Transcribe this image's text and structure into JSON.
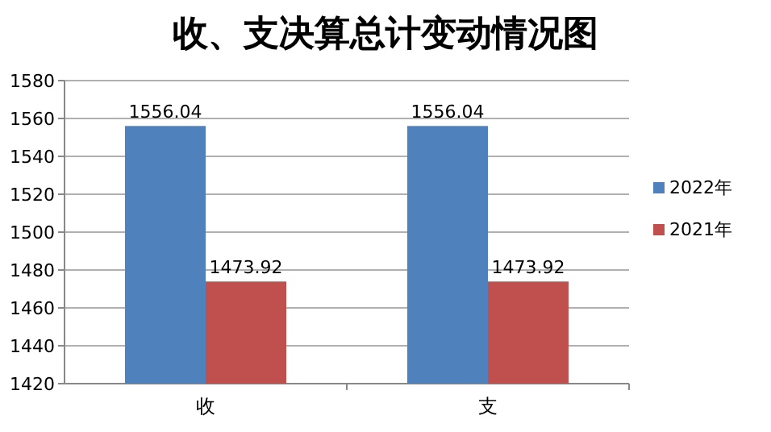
{
  "chart_data": {
    "type": "bar",
    "title": "收、支决算总计变动情况图",
    "categories": [
      "收",
      "支"
    ],
    "series": [
      {
        "name": "2022年",
        "color": "#4f81bd",
        "values": [
          1556.04,
          1556.04
        ]
      },
      {
        "name": "2021年",
        "color": "#c0504d",
        "values": [
          1473.92,
          1473.92
        ]
      }
    ],
    "ylim": [
      1420,
      1580
    ],
    "yticks": [
      1420,
      1440,
      1460,
      1480,
      1500,
      1520,
      1540,
      1560,
      1580
    ],
    "grid": "y",
    "legend": "right",
    "data_labels": true
  }
}
